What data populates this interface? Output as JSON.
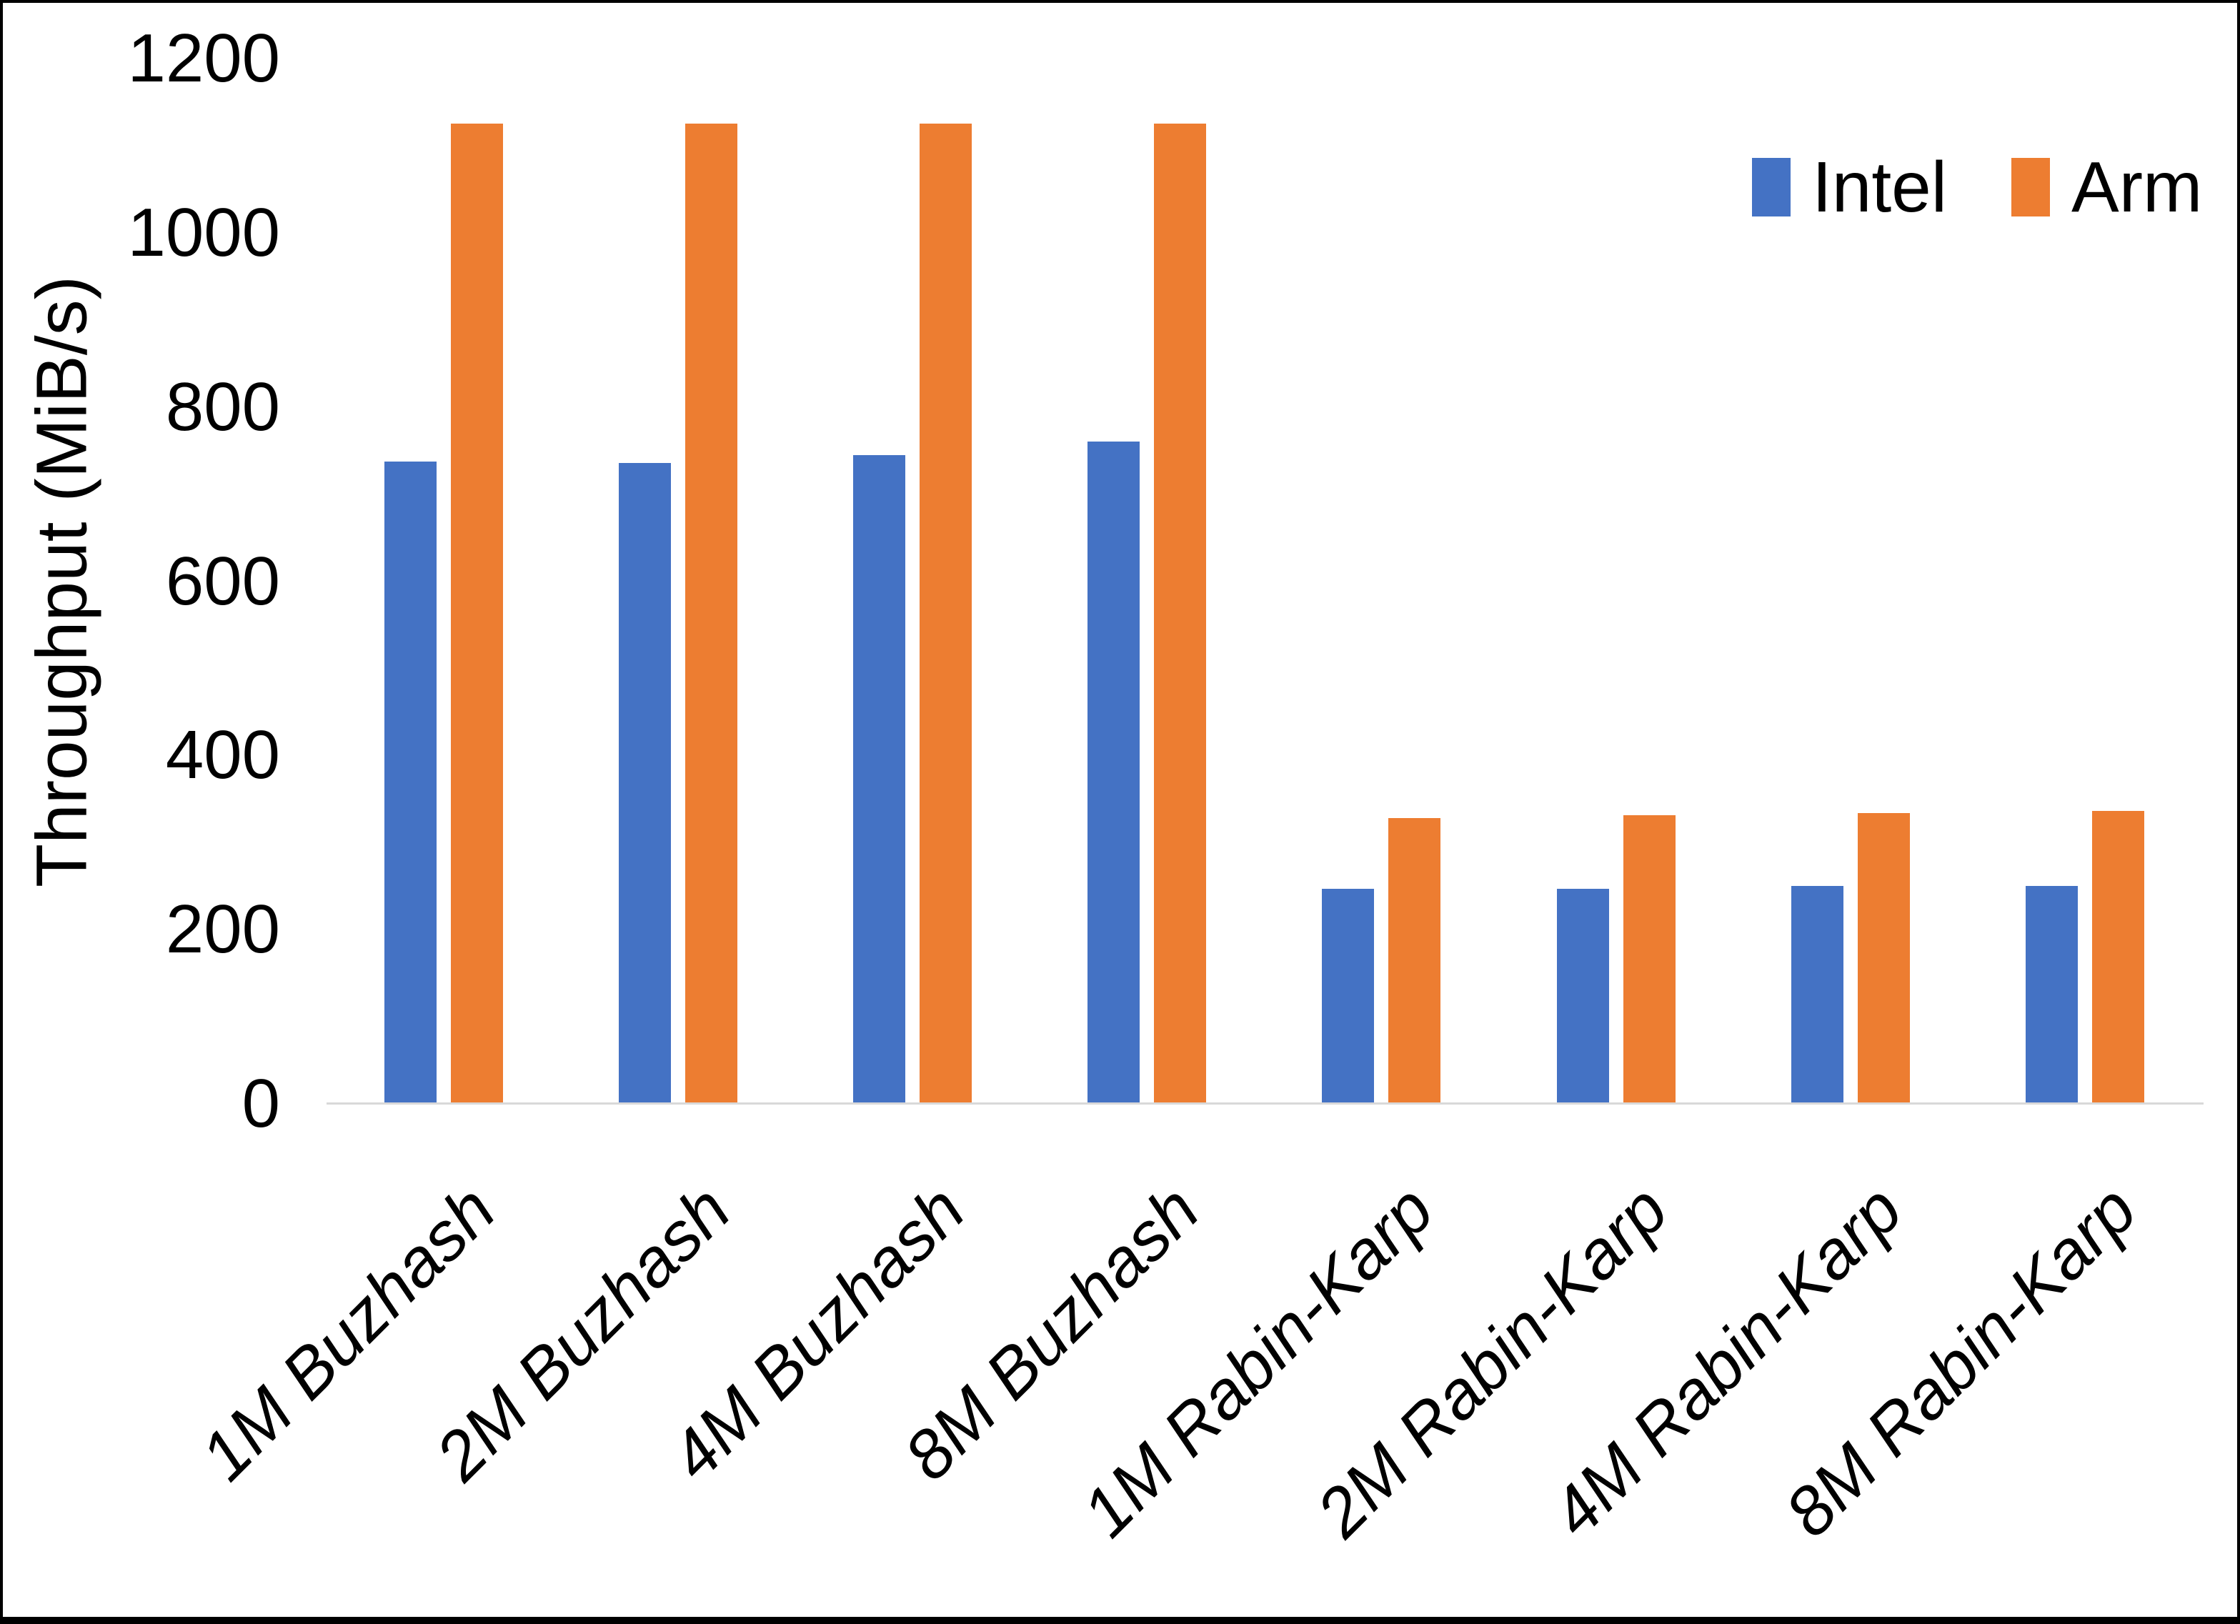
{
  "chart_data": {
    "type": "bar",
    "title": "",
    "categories": [
      "1M Buzhash",
      "2M Buzhash",
      "4M Buzhash",
      "8M Buzhash",
      "1M Rabin-Karp",
      "2M Rabin-Karp",
      "4M Rabin-Karp",
      "8M Rabin-Karp"
    ],
    "series": [
      {
        "name": "Intel",
        "color": "#4472C4",
        "values": [
          737,
          736,
          745,
          760,
          247,
          247,
          250,
          250
        ]
      },
      {
        "name": "Arm",
        "color": "#ED7D31",
        "values": [
          1125,
          1125,
          1125,
          1125,
          328,
          331,
          334,
          336
        ]
      }
    ],
    "xlabel": "",
    "ylabel": "Throughput (MiB/s)",
    "ylim": [
      0,
      1200
    ],
    "yticks": [
      0,
      200,
      400,
      600,
      800,
      1000,
      1200
    ],
    "grid": false,
    "legend_position": "top-right",
    "colors": {
      "axis_line": "#D9D9D9",
      "text": "#000000",
      "background": "#FFFFFF",
      "page_border": "#000000"
    }
  }
}
